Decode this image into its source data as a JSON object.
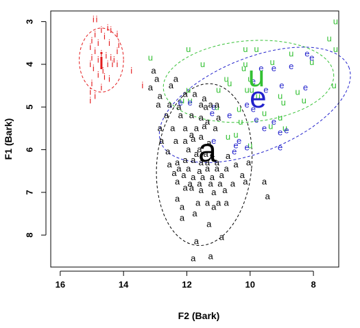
{
  "chart_data": {
    "type": "scatter",
    "xlabel": "F2 (Bark)",
    "ylabel": "F1 (Bark)",
    "xlim": [
      16.3,
      7.2
    ],
    "ylim": [
      8.75,
      2.75
    ],
    "x_reversed": true,
    "y_reversed": true,
    "xticks": [
      16,
      14,
      12,
      10,
      8
    ],
    "yticks": [
      3,
      4,
      5,
      6,
      7,
      8
    ],
    "grid": false,
    "legend": "none",
    "series": [
      {
        "name": "i",
        "color": "#e31a1c",
        "points": [
          [
            14.95,
            2.95
          ],
          [
            14.85,
            2.95
          ],
          [
            14.5,
            3.15
          ],
          [
            14.7,
            3.2
          ],
          [
            14.4,
            3.2
          ],
          [
            14.9,
            3.3
          ],
          [
            14.2,
            3.3
          ],
          [
            14.6,
            3.35
          ],
          [
            15.0,
            3.45
          ],
          [
            14.8,
            3.5
          ],
          [
            14.45,
            3.5
          ],
          [
            14.15,
            3.55
          ],
          [
            15.05,
            3.6
          ],
          [
            14.9,
            3.7
          ],
          [
            14.7,
            3.75
          ],
          [
            14.2,
            3.7
          ],
          [
            14.55,
            3.8
          ],
          [
            14.4,
            3.85
          ],
          [
            15.0,
            3.85
          ],
          [
            14.8,
            3.9
          ],
          [
            14.3,
            3.9
          ],
          [
            15.05,
            4.0
          ],
          [
            14.7,
            4.0
          ],
          [
            14.5,
            4.0
          ],
          [
            14.35,
            4.0
          ],
          [
            14.2,
            4.0
          ],
          [
            14.95,
            4.1
          ],
          [
            14.65,
            4.15
          ],
          [
            13.75,
            4.15
          ],
          [
            14.8,
            4.25
          ],
          [
            14.6,
            4.3
          ],
          [
            14.45,
            4.35
          ],
          [
            15.0,
            4.45
          ],
          [
            13.4,
            4.5
          ],
          [
            14.7,
            4.55
          ],
          [
            15.05,
            4.65
          ],
          [
            14.9,
            4.75
          ],
          [
            15.05,
            4.85
          ]
        ],
        "centroid": [
          14.7,
          3.95
        ]
      },
      {
        "name": "u",
        "color": "#33c033",
        "points": [
          [
            7.3,
            3.0
          ],
          [
            7.5,
            3.4
          ],
          [
            7.3,
            3.65
          ],
          [
            8.7,
            3.75
          ],
          [
            9.8,
            3.65
          ],
          [
            10.15,
            3.65
          ],
          [
            11.95,
            3.65
          ],
          [
            13.15,
            3.85
          ],
          [
            11.5,
            4.0
          ],
          [
            10.15,
            4.0
          ],
          [
            9.3,
            3.95
          ],
          [
            10.2,
            4.1
          ],
          [
            8.05,
            3.95
          ],
          [
            10.0,
            4.35
          ],
          [
            10.75,
            4.35
          ],
          [
            10.65,
            4.45
          ],
          [
            10.1,
            4.6
          ],
          [
            11.0,
            4.6
          ],
          [
            8.5,
            4.65
          ],
          [
            7.35,
            4.5
          ],
          [
            9.95,
            4.6
          ],
          [
            11.95,
            4.6
          ],
          [
            12.15,
            4.85
          ],
          [
            11.9,
            4.85
          ],
          [
            9.75,
            4.75
          ],
          [
            9.05,
            4.75
          ],
          [
            8.3,
            4.85
          ],
          [
            8.95,
            4.9
          ],
          [
            11.05,
            5.0
          ],
          [
            10.35,
            5.05
          ],
          [
            9.55,
            5.15
          ],
          [
            9.05,
            5.25
          ],
          [
            10.3,
            5.35
          ],
          [
            9.35,
            5.45
          ],
          [
            8.9,
            5.5
          ],
          [
            10.45,
            5.65
          ],
          [
            10.7,
            5.7
          ],
          [
            10.0,
            5.9
          ]
        ],
        "centroid": [
          9.8,
          4.3
        ]
      },
      {
        "name": "e",
        "color": "#2222cc",
        "points": [
          [
            8.2,
            3.75
          ],
          [
            8.05,
            3.85
          ],
          [
            9.65,
            4.1
          ],
          [
            9.25,
            4.1
          ],
          [
            8.7,
            4.05
          ],
          [
            9.0,
            4.5
          ],
          [
            8.25,
            4.55
          ],
          [
            9.9,
            4.4
          ],
          [
            9.5,
            4.6
          ],
          [
            9.8,
            5.3
          ],
          [
            10.1,
            4.95
          ],
          [
            11.9,
            4.9
          ],
          [
            12.2,
            4.9
          ],
          [
            11.15,
            5.0
          ],
          [
            9.9,
            5.05
          ],
          [
            9.25,
            5.35
          ],
          [
            9.55,
            5.5
          ],
          [
            9.05,
            5.6
          ],
          [
            11.15,
            5.8
          ],
          [
            10.35,
            5.8
          ],
          [
            10.45,
            5.9
          ],
          [
            10.1,
            5.95
          ],
          [
            9.05,
            5.95
          ],
          [
            10.5,
            6.05
          ],
          [
            11.2,
            5.15
          ],
          [
            10.65,
            5.2
          ],
          [
            8.85,
            5.55
          ]
        ],
        "centroid": [
          9.75,
          4.8
        ]
      },
      {
        "name": "a",
        "color": "#000000",
        "points": [
          [
            13.05,
            4.15
          ],
          [
            12.95,
            4.35
          ],
          [
            12.35,
            4.35
          ],
          [
            12.5,
            4.5
          ],
          [
            13.15,
            4.55
          ],
          [
            12.05,
            4.7
          ],
          [
            12.85,
            4.75
          ],
          [
            11.75,
            4.7
          ],
          [
            11.45,
            4.8
          ],
          [
            12.55,
            4.95
          ],
          [
            12.25,
            5.0
          ],
          [
            12.9,
            4.95
          ],
          [
            11.05,
            4.95
          ],
          [
            11.25,
            4.95
          ],
          [
            11.55,
            4.95
          ],
          [
            11.4,
            5.0
          ],
          [
            12.65,
            5.2
          ],
          [
            12.2,
            5.2
          ],
          [
            11.85,
            5.2
          ],
          [
            11.55,
            5.25
          ],
          [
            11.0,
            5.25
          ],
          [
            11.35,
            5.35
          ],
          [
            12.85,
            5.5
          ],
          [
            12.45,
            5.5
          ],
          [
            12.05,
            5.5
          ],
          [
            11.7,
            5.5
          ],
          [
            11.45,
            5.45
          ],
          [
            11.1,
            5.5
          ],
          [
            11.85,
            5.65
          ],
          [
            11.55,
            5.7
          ],
          [
            11.8,
            5.75
          ],
          [
            12.35,
            5.8
          ],
          [
            12.05,
            5.8
          ],
          [
            12.8,
            5.8
          ],
          [
            11.3,
            5.85
          ],
          [
            11.95,
            6.0
          ],
          [
            11.6,
            6.0
          ],
          [
            12.6,
            6.05
          ],
          [
            11.7,
            6.1
          ],
          [
            11.4,
            6.1
          ],
          [
            11.2,
            6.1
          ],
          [
            12.3,
            6.3
          ],
          [
            12.05,
            6.25
          ],
          [
            11.8,
            6.25
          ],
          [
            11.55,
            6.3
          ],
          [
            11.35,
            6.3
          ],
          [
            11.05,
            6.3
          ],
          [
            10.7,
            6.15
          ],
          [
            10.45,
            6.35
          ],
          [
            10.05,
            6.3
          ],
          [
            12.55,
            6.35
          ],
          [
            12.25,
            6.45
          ],
          [
            11.95,
            6.45
          ],
          [
            11.6,
            6.5
          ],
          [
            11.35,
            6.45
          ],
          [
            11.05,
            6.45
          ],
          [
            10.75,
            6.45
          ],
          [
            12.4,
            6.55
          ],
          [
            12.1,
            6.6
          ],
          [
            11.8,
            6.65
          ],
          [
            11.5,
            6.65
          ],
          [
            11.2,
            6.65
          ],
          [
            10.9,
            6.6
          ],
          [
            10.25,
            6.6
          ],
          [
            12.3,
            6.75
          ],
          [
            11.9,
            6.8
          ],
          [
            11.6,
            6.8
          ],
          [
            11.25,
            6.8
          ],
          [
            10.95,
            6.8
          ],
          [
            10.55,
            6.8
          ],
          [
            10.15,
            6.75
          ],
          [
            9.55,
            6.75
          ],
          [
            12.05,
            6.9
          ],
          [
            11.85,
            6.9
          ],
          [
            11.55,
            6.95
          ],
          [
            11.15,
            7.0
          ],
          [
            10.8,
            6.95
          ],
          [
            9.45,
            7.1
          ],
          [
            12.3,
            7.15
          ],
          [
            11.65,
            7.25
          ],
          [
            11.35,
            7.25
          ],
          [
            11.0,
            7.25
          ],
          [
            10.75,
            7.25
          ],
          [
            12.15,
            7.35
          ],
          [
            11.15,
            7.35
          ],
          [
            12.15,
            7.6
          ],
          [
            11.75,
            7.5
          ],
          [
            11.3,
            7.75
          ],
          [
            11.7,
            8.15
          ],
          [
            10.9,
            8.05
          ],
          [
            11.8,
            8.55
          ],
          [
            11.25,
            8.5
          ]
        ],
        "centroid": [
          11.35,
          6.05
        ]
      }
    ],
    "ellipses": [
      {
        "name": "i",
        "color": "#e31a1c",
        "cx": 14.7,
        "cy": 3.9,
        "rx": 0.7,
        "ry": 0.75,
        "rot": 0
      },
      {
        "name": "u",
        "color": "#33c033",
        "cx": 10.05,
        "cy": 4.4,
        "rx": 2.7,
        "ry": 0.95,
        "rot": -5
      },
      {
        "name": "e",
        "color": "#2222cc",
        "cx": 9.85,
        "cy": 4.95,
        "rx": 3.2,
        "ry": 1.1,
        "rot": -22
      },
      {
        "name": "a",
        "color": "#000000",
        "cx": 11.45,
        "cy": 6.35,
        "rx": 1.5,
        "ry": 1.9,
        "rot": 5
      }
    ]
  }
}
